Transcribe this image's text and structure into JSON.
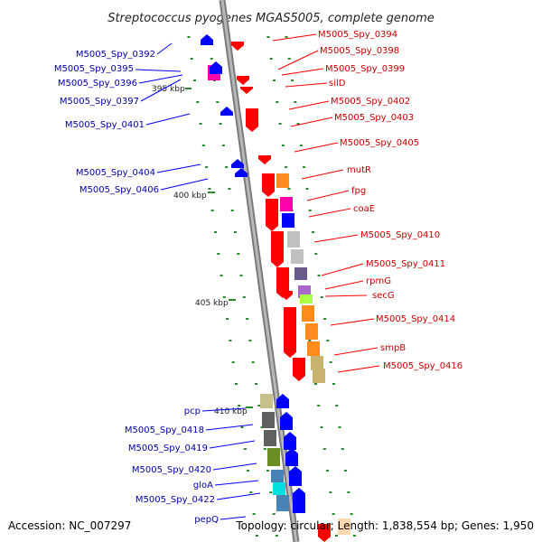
{
  "title": "Streptococcus pyogenes MGAS5005, complete genome",
  "footer": {
    "accession": "Accession: NC_007297",
    "summary": "Topology: circular; Length: 1,838,554 bp; Genes: 1,950"
  },
  "colors": {
    "backbone": "#909090",
    "plus_strand": "#ff0000",
    "minus_strand": "#0000ff",
    "plus_label": "#cc0000",
    "minus_label": "#0000aa",
    "tick": "#2a8a2a"
  },
  "ruler": [
    {
      "label": "395 kbp"
    },
    {
      "label": "400 kbp"
    },
    {
      "label": "405 kbp"
    },
    {
      "label": "410 kbp"
    }
  ],
  "plus_labels": [
    {
      "name": "M5005_Spy_0394"
    },
    {
      "name": "M5005_Spy_0398"
    },
    {
      "name": "M5005_Spy_0399"
    },
    {
      "name": "silD"
    },
    {
      "name": "M5005_Spy_0402"
    },
    {
      "name": "M5005_Spy_0403"
    },
    {
      "name": "M5005_Spy_0405"
    },
    {
      "name": "mutR"
    },
    {
      "name": "fpg"
    },
    {
      "name": "coaE"
    },
    {
      "name": "M5005_Spy_0410"
    },
    {
      "name": "M5005_Spy_0411"
    },
    {
      "name": "rpmG"
    },
    {
      "name": "secG"
    },
    {
      "name": "M5005_Spy_0414"
    },
    {
      "name": "smpB"
    },
    {
      "name": "M5005_Spy_0416"
    }
  ],
  "minus_labels": [
    {
      "name": "M5005_Spy_0392"
    },
    {
      "name": "M5005_Spy_0395"
    },
    {
      "name": "M5005_Spy_0396"
    },
    {
      "name": "M5005_Spy_0397"
    },
    {
      "name": "M5005_Spy_0401"
    },
    {
      "name": "M5005_Spy_0404"
    },
    {
      "name": "M5005_Spy_0406"
    },
    {
      "name": "pcp"
    },
    {
      "name": "M5005_Spy_0418"
    },
    {
      "name": "M5005_Spy_0419"
    },
    {
      "name": "M5005_Spy_0420"
    },
    {
      "name": "gloA"
    },
    {
      "name": "M5005_Spy_0422"
    },
    {
      "name": "pepQ"
    }
  ]
}
